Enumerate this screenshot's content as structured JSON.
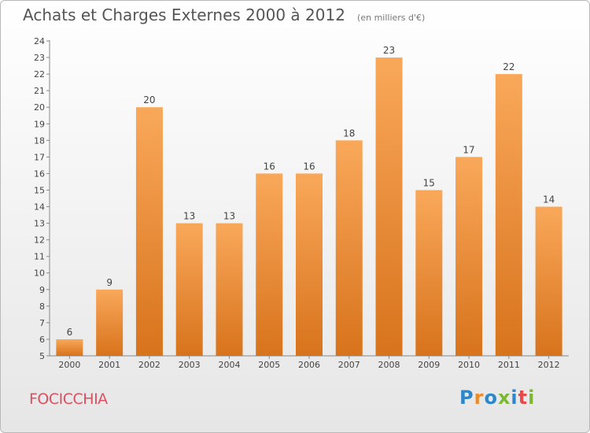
{
  "chart_data": {
    "type": "bar",
    "title": "Achats et Charges Externes 2000 à 2012",
    "subtitle": "(en milliers d'€)",
    "categories": [
      "2000",
      "2001",
      "2002",
      "2003",
      "2004",
      "2005",
      "2006",
      "2007",
      "2008",
      "2009",
      "2010",
      "2011",
      "2012"
    ],
    "values": [
      6,
      9,
      20,
      13,
      13,
      16,
      16,
      18,
      23,
      15,
      17,
      22,
      14
    ],
    "ylim": [
      5,
      24
    ],
    "yticks": [
      5,
      6,
      7,
      8,
      9,
      10,
      11,
      12,
      13,
      14,
      15,
      16,
      17,
      18,
      19,
      20,
      21,
      22,
      23,
      24
    ],
    "xlabel": "",
    "ylabel": "",
    "grid": false,
    "bar_color_top": "#f9a85a",
    "bar_color_bottom": "#d8731c"
  },
  "footer": {
    "commune": "FOCICCHIA",
    "brand": "Proxiti",
    "brand_colors": [
      "#2f86c8",
      "#f08a24",
      "#2f86c8",
      "#7cb82f",
      "#2f86c8",
      "#e84a4a",
      "#7cb82f"
    ]
  }
}
